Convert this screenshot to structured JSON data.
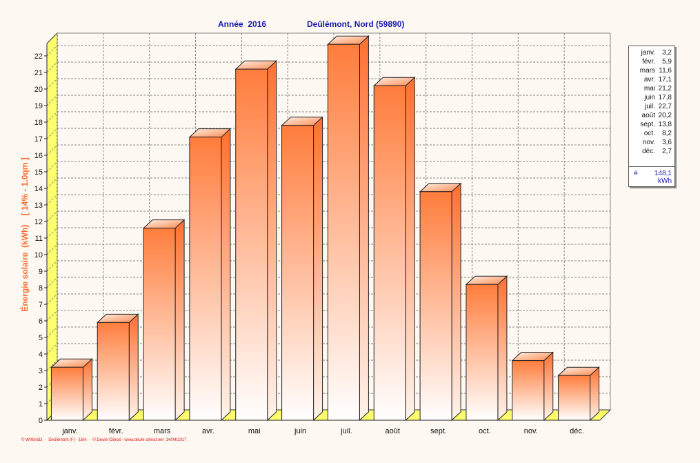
{
  "header": {
    "title_left": "Année  2016",
    "title_right": "Deûlémont, Nord (59890)"
  },
  "axis": {
    "ylabel": "Énergie solaire  (kWh)    [ 14% - 1.0qm ]"
  },
  "chart_data": {
    "type": "bar",
    "title": "Année  2016        Deûlémont, Nord (59890)",
    "xlabel": "",
    "ylabel": "Énergie solaire  (kWh)    [ 14% - 1.0qm ]",
    "ylim": [
      0,
      22
    ],
    "yticks": [
      0,
      1,
      2,
      3,
      4,
      5,
      6,
      7,
      8,
      9,
      10,
      11,
      12,
      13,
      14,
      15,
      16,
      17,
      18,
      19,
      20,
      21,
      22
    ],
    "grid": true,
    "categories": [
      "janv.",
      "févr.",
      "mars",
      "avr.",
      "mai",
      "juin",
      "juil.",
      "août",
      "sept.",
      "oct.",
      "nov.",
      "déc."
    ],
    "values": [
      3.2,
      5.9,
      11.6,
      17.1,
      21.2,
      17.8,
      22.7,
      20.2,
      13.8,
      8.2,
      3.6,
      2.7
    ],
    "colors": {
      "bar_top": "#ff7d3c",
      "bar_bottom": "#ffffff",
      "floor": "#ffff6e",
      "grid": "#888888"
    }
  },
  "legend": {
    "items": [
      {
        "month": "janv.",
        "value": "3,2"
      },
      {
        "month": "févr.",
        "value": "5,9"
      },
      {
        "month": "mars",
        "value": "11,6"
      },
      {
        "month": "avr.",
        "value": "17,1"
      },
      {
        "month": "mai",
        "value": "21,2"
      },
      {
        "month": "juin",
        "value": "17,8"
      },
      {
        "month": "juil.",
        "value": "22,7"
      },
      {
        "month": "août",
        "value": "20,2"
      },
      {
        "month": "sept.",
        "value": "13,8"
      },
      {
        "month": "oct.",
        "value": "8,2"
      },
      {
        "month": "nov.",
        "value": "3,6"
      },
      {
        "month": "déc.",
        "value": "2,7"
      }
    ],
    "total_symbol": "#",
    "total_value": "148,1",
    "total_unit": "kWh"
  },
  "footer": {
    "credit": "© WrWin32  -  Deûlémont (F) - 16m  -  © Deule-Climat - www.deule-climat.net  14/04/2017"
  }
}
